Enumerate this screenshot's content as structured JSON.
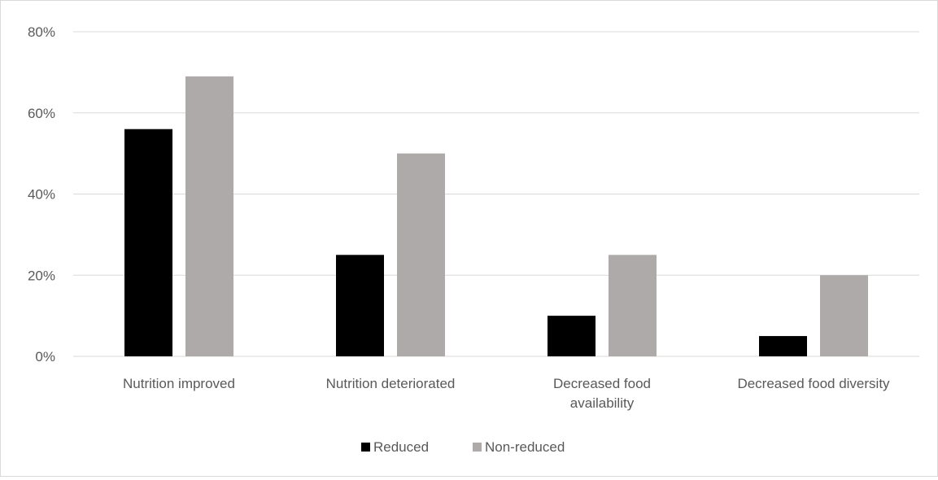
{
  "chart_data": {
    "type": "bar",
    "categories": [
      [
        "Nutrition improved"
      ],
      [
        "Nutrition deteriorated"
      ],
      [
        "Decreased food",
        "availability"
      ],
      [
        "Decreased food diversity"
      ]
    ],
    "series": [
      {
        "name": "Reduced",
        "values": [
          0.56,
          0.25,
          0.1,
          0.05
        ],
        "color": "#000000"
      },
      {
        "name": "Non-reduced",
        "values": [
          0.69,
          0.5,
          0.25,
          0.2
        ],
        "color": "#aeaaaa"
      }
    ],
    "y_ticks": [
      "0%",
      "20%",
      "40%",
      "60%",
      "80%"
    ],
    "ylim": [
      0,
      0.8
    ],
    "grid": true,
    "legend_position": "bottom",
    "gridline_color": "#d9d9d9",
    "text_color": "#595959"
  }
}
